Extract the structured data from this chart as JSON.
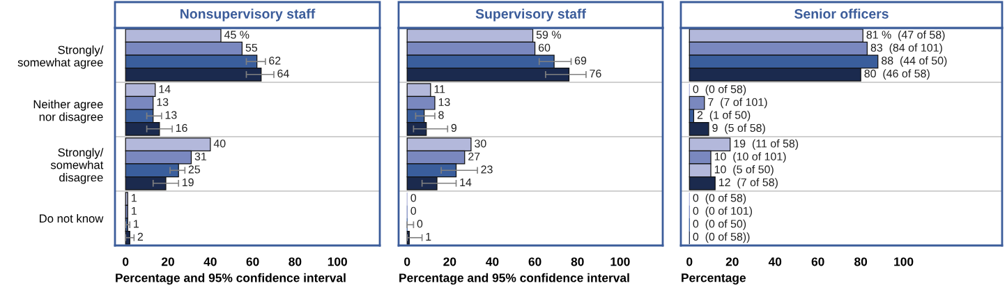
{
  "chart_data": [
    {
      "type": "bar",
      "orientation": "horizontal",
      "title": "Nonsupervisory staff",
      "xlabel": "Percentage and 95% confidence interval",
      "categories": [
        "Strongly/\nsomewhat agree",
        "Neither agree\nnor disagree",
        "Strongly/\nsomewhat\ndisagree",
        "Do not know"
      ],
      "series": [
        {
          "color": "#b3b8db",
          "values": [
            45,
            14,
            40,
            1
          ],
          "value_labels": [
            "45 %",
            "14",
            "40",
            "1"
          ]
        },
        {
          "color": "#7a88bf",
          "values": [
            55,
            13,
            31,
            1
          ],
          "value_labels": [
            "55",
            "13",
            "31",
            "1"
          ]
        },
        {
          "color": "#3a5e9c",
          "values": [
            62,
            13,
            25,
            1
          ],
          "value_labels": [
            "62",
            "13",
            "25",
            "1"
          ],
          "errors": [
            [
              57,
              66
            ],
            [
              10,
              17
            ],
            [
              21,
              28
            ],
            [
              0,
              2
            ]
          ]
        },
        {
          "color": "#1b2a4e",
          "values": [
            64,
            16,
            19,
            2
          ],
          "value_labels": [
            "64",
            "16",
            "19",
            "2"
          ],
          "errors": [
            [
              57,
              70
            ],
            [
              10,
              22
            ],
            [
              13,
              25
            ],
            [
              0,
              4
            ]
          ]
        }
      ],
      "xlim": [
        -5,
        120
      ],
      "xticks": [
        0,
        20,
        40,
        60,
        80,
        100
      ],
      "grid": "y"
    },
    {
      "type": "bar",
      "orientation": "horizontal",
      "title": "Supervisory staff",
      "xlabel": "Percentage and 95% confidence interval",
      "categories": [
        null,
        null,
        null,
        null
      ],
      "series": [
        {
          "color": "#b3b8db",
          "values": [
            59,
            11,
            30,
            0
          ],
          "value_labels": [
            "59 %",
            "11",
            "30",
            "0"
          ]
        },
        {
          "color": "#7a88bf",
          "values": [
            60,
            13,
            27,
            0
          ],
          "value_labels": [
            "60",
            "13",
            "27",
            "0"
          ]
        },
        {
          "color": "#3a5e9c",
          "values": [
            69,
            8,
            23,
            0
          ],
          "value_labels": [
            "69",
            "8",
            "23",
            "0"
          ],
          "errors": [
            [
              62,
              77
            ],
            [
              4,
              13
            ],
            [
              16,
              33
            ],
            [
              0,
              3
            ]
          ]
        },
        {
          "color": "#1b2a4e",
          "values": [
            76,
            9,
            14,
            1
          ],
          "value_labels": [
            "76",
            "9",
            "14",
            "1"
          ],
          "errors": [
            [
              65,
              84
            ],
            [
              3,
              19
            ],
            [
              7,
              23
            ],
            [
              0,
              7
            ]
          ]
        }
      ],
      "xlim": [
        -4,
        120
      ],
      "xticks": [
        0,
        20,
        40,
        60,
        80,
        100
      ],
      "tick_labels": "x",
      "grid": "y"
    },
    {
      "type": "bar",
      "orientation": "horizontal",
      "title": "Senior officers",
      "xlabel": "Percentage",
      "categories": [
        null,
        null,
        null,
        null
      ],
      "series": [
        {
          "color": "#b3b8db",
          "values": [
            81,
            0,
            19,
            0
          ],
          "value_labels": [
            "81 %  (47 of 58)",
            "0  (0 of 58)",
            "19  (11 of 58)",
            "0  (0 of 58)"
          ]
        },
        {
          "color": "#7a88bf",
          "values": [
            83,
            7,
            10,
            0
          ],
          "value_labels": [
            "83  (84 of 101)",
            "7  (7 of 101)",
            "10  (10 of 101)",
            "0  (0 of 101)"
          ]
        },
        {
          "colors": [
            "#3a5e9c",
            "#3a5e9c",
            "#b3b8db",
            "#3a5e9c"
          ],
          "values": [
            88,
            2,
            10,
            0
          ],
          "value_labels": [
            "88  (44 of 50)",
            "2  (1 of 50)",
            "10  (5 of 50)",
            "0  (0 of 50)"
          ]
        },
        {
          "color": "#1b2a4e",
          "values": [
            80,
            9,
            12,
            0
          ],
          "value_labels": [
            "80  (46 of 58)",
            "9  (5 of 58)",
            "12  (7 of 58)",
            "0  (0 of 58))"
          ]
        }
      ],
      "xlim": [
        -4,
        146
      ],
      "xticks": [
        0,
        20,
        40,
        60,
        80,
        100
      ],
      "tick_labels": "x",
      "grid": "y"
    }
  ]
}
